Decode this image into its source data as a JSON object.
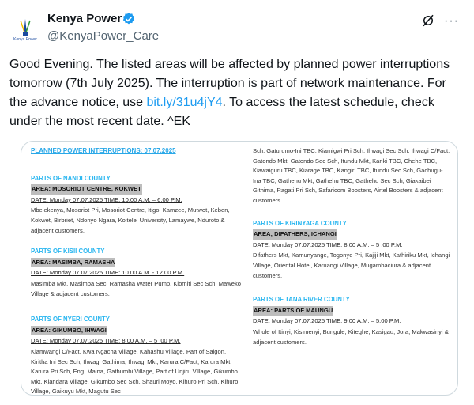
{
  "author": {
    "name": "Kenya Power",
    "handle": "@KenyaPower_Care",
    "verified": true,
    "avatar_text": "Kenya Power",
    "badge_color": "#1d9bf0"
  },
  "actions": {
    "grok_icon": "grok-icon",
    "more_label": "···"
  },
  "tweet": {
    "text_before": "Good Evening. The listed areas will be affected by planned power interruptions tomorrow (7th July  2025). The interruption is part of network maintenance. For the advance notice, use ",
    "link": "bit.ly/31u4jY4",
    "text_after": ". To access the latest schedule, check under the most recent date. ^EK"
  },
  "document": {
    "title": "PLANNED POWER INTERRUPTIONS; 07.07.2025",
    "sections": [
      {
        "county": "PARTS OF NANDI COUNTY",
        "area": "AREA: MOSORIOT CENTRE, KOKWET",
        "date": "DATE: Monday 07.07.2025 TIME: 10.00 A.M. – 6.00 P.M.",
        "body": "Mbelekenya, Mosoriot Pri, Mosoriot Centre, Itigo, Kamzee, Mutwot, Keben, Kokwet, Birbriet, Ndonyo Ngara, Koitelel University, Lamaywe, Nduroto & adjacent customers."
      },
      {
        "county": "PARTS OF KISII COUNTY",
        "area": "AREA: MASIMBA, RAMASHA",
        "date": "DATE: Monday 07.07.2025 TIME: 10.00 A.M. - 12.00 P.M.",
        "body": "Masimba Mkt, Masimba Sec, Ramasha Water Pump, Kiomiti Sec Sch, Maweko Village & adjacent customers."
      },
      {
        "county": "PARTS OF NYERI COUNTY",
        "area": "AREA: GIKUMBO, IHWAGI",
        "date": "DATE: Monday 07.07.2025 TIME: 8.00 A.M. – 5 .00 P.M.",
        "body": "Kiamwangi C/Fact, Kwa Ngacha Village, Kahashu Village, Part of Saigon, Kiritha Ini Sec Sch, Ihwagi Gathima, Ihwagi Mkt, Karura C/Fact, Karura Mkt, Karura Pri Sch, Eng. Maina, Gathumbi Village, Part of Unjiru Village, Gikumbo Mkt, Kiandara Village, Gikumbo Sec Sch, Shauri Moyo, Kihuro Pri Sch, Kihuro Village, Gaikuyu Mkt, Magutu Sec"
      }
    ],
    "continued_body": "Sch, Gaturumo-Ini TBC, Kiamigwi Pri Sch, Ihwagi Sec Sch, Ihwagi C/Fact, Gatondo Mkt, Gatondo Sec Sch, Itundu Mkt, Kariki TBC, Chehe TBC, Kiawaiguru TBC, Kiarage TBC, Kangiri TBC, Itundu Sec Sch, Gachugu-Ina TBC, Gathehu Mkt, Gathehu TBC, Gathehu Sec Sch, Giakaibei Githima, Ragati Pri Sch, Safaricom Boosters, Airtel Boosters & adjacent customers.",
    "sections_right": [
      {
        "county": "PARTS OF KIRINYAGA COUNTY",
        "area": "AREA; DIFATHERS, ICHANGI",
        "date": "DATE: Monday 07.07.2025 TIME: 8.00 A.M. – 5 .00 P.M.",
        "body": "Difathers Mkt, Kamunyange, Togonye Pri, Kajiji Mkt, Kathiriku Mkt, Ichangi Village, Oriental Hotel, Karuangi Village, Mugambaciura & adjacent customers."
      },
      {
        "county": "PARTS OF TANA RIVER COUNTY",
        "area": "AREA: PARTS OF MAUNGU",
        "date": "DATE: Monday 07.07.2025 TIME: 9.00 A.M. – 5.00 P.M.",
        "body": "Whole of Itinyi, Kisimenyi, Bungule, Kiteghe, Kasigau, Jora, Makwasinyi & adjacent customers."
      }
    ]
  }
}
